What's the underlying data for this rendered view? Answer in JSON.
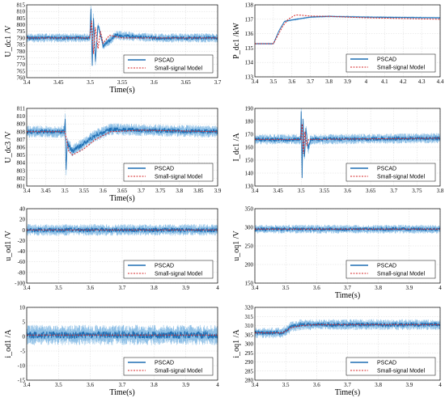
{
  "figure": {
    "series_names": [
      "PSCAD",
      "Small-signal Model"
    ],
    "colors": {
      "pscad": "#1f6fb4",
      "pscad_band": "#8dbfe6",
      "model": "#d62728"
    }
  },
  "chart_data": [
    {
      "id": "a",
      "type": "line",
      "ylabel": "U_dc1 /V",
      "xlabel": "Time(s)",
      "xlim": [
        3.4,
        3.7
      ],
      "ylim": [
        760,
        815
      ],
      "xticks": [
        "3.4",
        "3.45",
        "3.5",
        "3.55",
        "3.6",
        "3.65",
        "3.7"
      ],
      "yticks": [
        "760",
        "765",
        "770",
        "775",
        "780",
        "785",
        "790",
        "795",
        "800",
        "805",
        "810",
        "815"
      ],
      "grid": true,
      "legend": "bottom-right",
      "series": [
        {
          "name": "PSCAD",
          "x": [
            3.4,
            3.45,
            3.499,
            3.501,
            3.503,
            3.505,
            3.508,
            3.512,
            3.52,
            3.54,
            3.6,
            3.7
          ],
          "y": [
            790,
            790,
            790,
            812,
            768,
            805,
            772,
            800,
            784,
            792,
            790,
            790
          ],
          "ripple": 3.5
        },
        {
          "name": "Small-signal Model",
          "x": [
            3.4,
            3.499,
            3.502,
            3.505,
            3.508,
            3.512,
            3.516,
            3.52,
            3.53,
            3.55,
            3.7
          ],
          "y": [
            790,
            790,
            803,
            778,
            798,
            782,
            795,
            786,
            792,
            790,
            790
          ],
          "ripple": 0
        }
      ]
    },
    {
      "id": "b",
      "type": "line",
      "ylabel": "P_dc1 /kW",
      "xlabel": "",
      "xlim": [
        3.4,
        4.4
      ],
      "ylim": [
        133,
        138
      ],
      "xticks": [
        "3.4",
        "3.5",
        "3.6",
        "3.7",
        "3.8",
        "3.9",
        "4",
        "4.1",
        "4.2",
        "4.3",
        "4.4"
      ],
      "yticks": [
        "133",
        "134",
        "135",
        "136",
        "137",
        "138"
      ],
      "grid": true,
      "legend": "bottom-right",
      "series": [
        {
          "name": "PSCAD",
          "x": [
            3.4,
            3.5,
            3.53,
            3.56,
            3.6,
            3.65,
            3.7,
            3.8,
            4.0,
            4.4
          ],
          "y": [
            135.3,
            135.3,
            136.2,
            136.85,
            136.95,
            137.05,
            137.15,
            137.2,
            137.15,
            137.1
          ],
          "ripple": 0.03
        },
        {
          "name": "Small-signal Model",
          "x": [
            3.4,
            3.5,
            3.55,
            3.58,
            3.62,
            3.65,
            3.7,
            3.8,
            4.0,
            4.4
          ],
          "y": [
            135.3,
            135.3,
            136.5,
            137.0,
            137.3,
            137.28,
            137.22,
            137.2,
            137.1,
            137.0
          ],
          "ripple": 0
        }
      ]
    },
    {
      "id": "c",
      "type": "line",
      "ylabel": "U_dc3 /V",
      "xlabel": "Time(s)",
      "xlim": [
        3.4,
        3.9
      ],
      "ylim": [
        801,
        811
      ],
      "xticks": [
        "3.4",
        "3.45",
        "3.5",
        "3.55",
        "3.6",
        "3.65",
        "3.7",
        "3.75",
        "3.8",
        "3.85",
        "3.9"
      ],
      "yticks": [
        "801",
        "802",
        "803",
        "804",
        "805",
        "806",
        "807",
        "808",
        "809",
        "810",
        "811"
      ],
      "grid": true,
      "legend": "bottom-right",
      "series": [
        {
          "name": "PSCAD",
          "x": [
            3.4,
            3.499,
            3.501,
            3.503,
            3.506,
            3.52,
            3.55,
            3.58,
            3.62,
            3.7,
            3.9
          ],
          "y": [
            808,
            808,
            810,
            802.5,
            806.5,
            805.5,
            806.5,
            807.5,
            808.3,
            808.2,
            808
          ],
          "ripple": 0.8
        },
        {
          "name": "Small-signal Model",
          "x": [
            3.4,
            3.5,
            3.51,
            3.52,
            3.55,
            3.58,
            3.62,
            3.7,
            3.9
          ],
          "y": [
            808,
            808,
            805.5,
            805,
            805.8,
            807,
            808,
            808.2,
            808
          ],
          "ripple": 0
        }
      ]
    },
    {
      "id": "d",
      "type": "line",
      "ylabel": "I_dc1 /A",
      "xlabel": "",
      "xlim": [
        3.4,
        3.8
      ],
      "ylim": [
        130,
        190
      ],
      "xticks": [
        "3.4",
        "3.45",
        "3.5",
        "3.55",
        "3.6",
        "3.65",
        "3.7",
        "3.75",
        "3.8"
      ],
      "yticks": [
        "130",
        "140",
        "150",
        "160",
        "170",
        "180",
        "190"
      ],
      "grid": true,
      "legend": "bottom-right",
      "series": [
        {
          "name": "PSCAD",
          "x": [
            3.4,
            3.499,
            3.5,
            3.502,
            3.504,
            3.507,
            3.51,
            3.515,
            3.52,
            3.8
          ],
          "y": [
            166,
            166,
            188,
            137,
            182,
            150,
            175,
            158,
            166,
            167
          ],
          "ripple": 4
        },
        {
          "name": "Small-signal Model",
          "x": [
            3.4,
            3.499,
            3.502,
            3.505,
            3.508,
            3.512,
            3.516,
            3.8
          ],
          "y": [
            166,
            166,
            178,
            155,
            172,
            161,
            166,
            167
          ],
          "ripple": 0
        }
      ]
    },
    {
      "id": "e",
      "type": "line",
      "ylabel": "u_od1 /V",
      "xlabel": "",
      "xlim": [
        3.4,
        4.0
      ],
      "ylim": [
        -100,
        40
      ],
      "xticks": [
        "3.4",
        "3.5",
        "3.6",
        "3.7",
        "3.8",
        "3.9",
        "4"
      ],
      "yticks": [
        "-100",
        "-80",
        "-60",
        "-40",
        "-20",
        "0",
        "20",
        "40"
      ],
      "grid": true,
      "legend": "bottom-right",
      "series": [
        {
          "name": "PSCAD",
          "x": [
            3.4,
            4.0
          ],
          "y": [
            0,
            0
          ],
          "ripple": 11
        },
        {
          "name": "Small-signal Model",
          "x": [
            3.4,
            4.0
          ],
          "y": [
            0,
            0
          ],
          "ripple": 0
        }
      ]
    },
    {
      "id": "f",
      "type": "line",
      "ylabel": "u_oq1 /V",
      "xlabel": "Time(s)",
      "xlim": [
        3.4,
        4.0
      ],
      "ylim": [
        150,
        350
      ],
      "xticks": [
        "3.4",
        "3.5",
        "3.6",
        "3.7",
        "3.8",
        "3.9",
        "4"
      ],
      "yticks": [
        "150",
        "200",
        "250",
        "300",
        "350"
      ],
      "grid": true,
      "legend": "bottom-right",
      "series": [
        {
          "name": "PSCAD",
          "x": [
            3.4,
            4.0
          ],
          "y": [
            295,
            295
          ],
          "ripple": 12
        },
        {
          "name": "Small-signal Model",
          "x": [
            3.4,
            4.0
          ],
          "y": [
            295,
            295
          ],
          "ripple": 0
        }
      ]
    },
    {
      "id": "g",
      "type": "line",
      "ylabel": "i_od1 /A",
      "xlabel": "Time(s)",
      "xlim": [
        3.4,
        4.0
      ],
      "ylim": [
        -15,
        10
      ],
      "xticks": [
        "3.4",
        "3.5",
        "3.6",
        "3.7",
        "3.8",
        "3.9",
        "4"
      ],
      "yticks": [
        "-15",
        "-10",
        "-5",
        "0",
        "5",
        "10"
      ],
      "grid": true,
      "legend": "bottom-right",
      "series": [
        {
          "name": "PSCAD",
          "x": [
            3.4,
            4.0
          ],
          "y": [
            0.5,
            0.5
          ],
          "ripple": 3.5
        },
        {
          "name": "Small-signal Model",
          "x": [
            3.4,
            4.0
          ],
          "y": [
            0.5,
            0.5
          ],
          "ripple": 0
        }
      ]
    },
    {
      "id": "h",
      "type": "line",
      "ylabel": "i_oq1 /A",
      "xlabel": "Time(s)",
      "xlim": [
        3.4,
        4.0
      ],
      "ylim": [
        280,
        320
      ],
      "xticks": [
        "3.4",
        "3.5",
        "3.6",
        "3.7",
        "3.8",
        "3.9",
        "4"
      ],
      "yticks": [
        "280",
        "285",
        "290",
        "295",
        "300",
        "305",
        "310",
        "315",
        "320"
      ],
      "grid": true,
      "legend": "bottom-right",
      "series": [
        {
          "name": "PSCAD",
          "x": [
            3.4,
            3.49,
            3.52,
            3.55,
            3.6,
            4.0
          ],
          "y": [
            306,
            306,
            309.5,
            310.5,
            310.5,
            310.5
          ],
          "ripple": 3
        },
        {
          "name": "Small-signal Model",
          "x": [
            3.4,
            3.49,
            3.52,
            3.55,
            3.6,
            4.0
          ],
          "y": [
            306,
            306,
            309,
            310,
            310.5,
            310.5
          ],
          "ripple": 0
        }
      ]
    }
  ]
}
